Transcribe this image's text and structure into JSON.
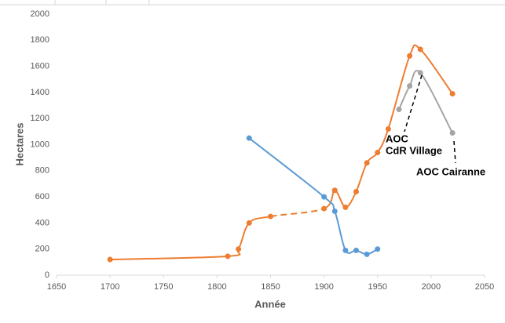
{
  "chart_data": {
    "type": "line",
    "xlabel": "Année",
    "ylabel": "Hectares",
    "xlim": [
      1650,
      2050
    ],
    "xticks": [
      1650,
      1700,
      1750,
      1800,
      1850,
      1900,
      1950,
      2000,
      2050
    ],
    "ylim": [
      0,
      2000
    ],
    "yticks": [
      0,
      200,
      400,
      600,
      800,
      1000,
      1200,
      1400,
      1600,
      1800,
      2000
    ],
    "grid": false,
    "smooth": true,
    "series": [
      {
        "color": "#ed7d31",
        "x": [
          1700,
          1810,
          1820,
          1830,
          1850,
          1900,
          1910,
          1920,
          1930,
          1940,
          1950,
          1960,
          1980,
          1990,
          2020
        ],
        "values": [
          120,
          145,
          200,
          400,
          450,
          510,
          650,
          520,
          640,
          860,
          940,
          1120,
          1680,
          1730,
          1390
        ],
        "dashed_segments": [
          4
        ]
      },
      {
        "color": "#5b9bd5",
        "x": [
          1830,
          1900,
          1910,
          1920,
          1930,
          1940,
          1950
        ],
        "values": [
          1050,
          600,
          490,
          190,
          190,
          160,
          200
        ]
      },
      {
        "color": "#a5a5a5",
        "x": [
          1970,
          1980,
          1990,
          2020
        ],
        "values": [
          1270,
          1450,
          1550,
          1090
        ]
      }
    ],
    "annotations": [
      "AOC",
      "CdR Village",
      "AOC Cairanne"
    ]
  }
}
